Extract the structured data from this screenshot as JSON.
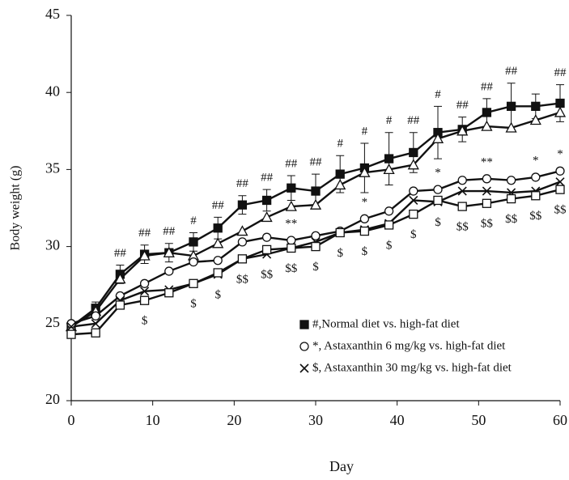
{
  "chart_data": {
    "type": "line",
    "xlabel": "Day",
    "ylabel": "Body weight (g)",
    "x": [
      0,
      3,
      6,
      9,
      12,
      15,
      18,
      21,
      24,
      27,
      30,
      33,
      36,
      39,
      42,
      45,
      48,
      51,
      54,
      57,
      60
    ],
    "xlim": [
      0,
      60
    ],
    "xticks": [
      0,
      10,
      20,
      30,
      40,
      50,
      60
    ],
    "ylim": [
      20,
      45
    ],
    "yticks": [
      20,
      25,
      30,
      35,
      40,
      45
    ],
    "grid": false,
    "series": [
      {
        "name": "#,Normal diet vs. high-fat diet",
        "marker": "filled-square",
        "color": "#111111",
        "values": [
          24.8,
          26.0,
          28.2,
          29.5,
          29.6,
          30.3,
          31.2,
          32.7,
          33.0,
          33.8,
          33.6,
          34.7,
          35.1,
          35.7,
          36.1,
          37.4,
          37.6,
          38.7,
          39.1,
          39.1,
          39.3
        ],
        "errors": [
          0.3,
          0.4,
          0.6,
          0.6,
          0.6,
          0.6,
          0.7,
          0.6,
          0.7,
          0.8,
          1.1,
          1.2,
          1.6,
          1.7,
          1.3,
          1.7,
          0.8,
          0.9,
          1.5,
          0.8,
          1.2
        ],
        "annotations": [
          null,
          null,
          "##",
          "##",
          "##",
          "#",
          "##",
          "##",
          "##",
          "##",
          "##",
          "#",
          "#",
          "#",
          "##",
          "#",
          "##",
          "##",
          "##",
          null,
          "##"
        ]
      },
      {
        "marker": "open-triangle",
        "color": "#111111",
        "values": [
          24.8,
          25.8,
          27.9,
          29.4,
          29.6,
          29.4,
          30.2,
          31.0,
          31.9,
          32.6,
          32.7,
          34.0,
          34.8,
          35.0,
          35.3,
          37.0,
          37.5,
          37.8,
          37.7,
          38.2,
          38.7
        ]
      },
      {
        "name": "*, Astaxanthin 6 mg/kg vs. high-fat diet",
        "marker": "open-circle",
        "color": "#111111",
        "values": [
          25.0,
          25.5,
          26.8,
          27.6,
          28.4,
          29.0,
          29.1,
          30.3,
          30.6,
          30.4,
          30.7,
          31.0,
          31.8,
          32.3,
          33.6,
          33.7,
          34.3,
          34.4,
          34.3,
          34.5,
          34.9
        ],
        "annotations": [
          null,
          null,
          null,
          null,
          null,
          null,
          null,
          null,
          null,
          "**",
          null,
          null,
          "*",
          null,
          null,
          "*",
          null,
          "**",
          null,
          "*",
          "*"
        ]
      },
      {
        "name": "$, Astaxanthin 30 mg/kg vs. high-fat diet",
        "marker": "cross",
        "color": "#111111",
        "values": [
          24.8,
          25.0,
          26.5,
          27.1,
          27.2,
          27.6,
          28.2,
          29.2,
          29.5,
          29.9,
          30.3,
          30.9,
          31.1,
          31.5,
          33.0,
          32.9,
          33.6,
          33.6,
          33.5,
          33.6,
          34.2
        ],
        "annotations": [
          null,
          null,
          null,
          "$",
          null,
          "$",
          "$",
          "$$",
          "$$",
          "$$",
          "$",
          "$",
          "$",
          "$",
          "$",
          "$",
          "$$",
          "$$",
          "$$",
          "$$",
          "$$"
        ]
      },
      {
        "marker": "open-square",
        "color": "#111111",
        "values": [
          24.3,
          24.4,
          26.2,
          26.5,
          27.0,
          27.6,
          28.3,
          29.2,
          29.8,
          29.9,
          30.0,
          30.9,
          31.0,
          31.4,
          32.1,
          33.0,
          32.6,
          32.8,
          33.1,
          33.3,
          33.7
        ]
      }
    ]
  }
}
